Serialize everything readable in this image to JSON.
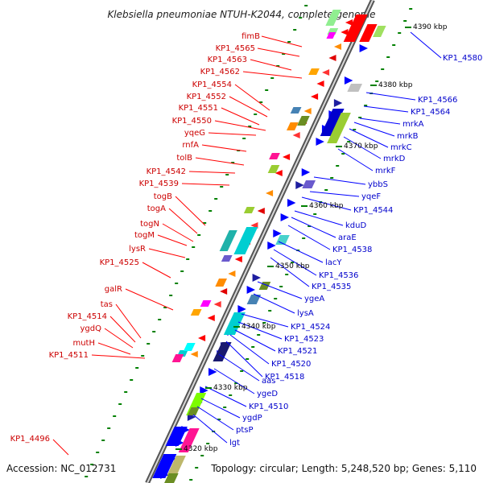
{
  "title": "Klebsiella pneumoniae NTUH-K2044, complete genome",
  "accession": "Accession: NC_012731",
  "topology": "Topology: circular; Length: 5,248,520 bp; Genes: 5,110",
  "colors": {
    "forward_label": "#cc0000",
    "reverse_label": "#0000cc",
    "forward_arrow": "#ff0000",
    "reverse_arrow": "#0000ff",
    "backbone": "#808080",
    "tick": "#008000"
  },
  "kbp_markers": [
    "4390 kbp",
    "4380 kbp",
    "4370 kbp",
    "4360 kbp",
    "4350 kbp",
    "4340 kbp",
    "4330 kbp",
    "4320 kbp"
  ],
  "left_labels": [
    "fimB",
    "KP1_4565",
    "KP1_4563",
    "KP1_4562",
    "KP1_4554",
    "KP1_4552",
    "KP1_4551",
    "KP1_4550",
    "yqeG",
    "rnfA",
    "tolB",
    "KP1_4542",
    "KP1_4539",
    "togB",
    "togA",
    "togN",
    "togM",
    "lysR",
    "KP1_4525",
    "galR",
    "tas",
    "KP1_4514",
    "ygdQ",
    "mutH",
    "KP1_4511",
    "KP1_4496"
  ],
  "right_labels": [
    "KP1_4580",
    "KP1_4566",
    "KP1_4564",
    "mrkA",
    "mrkB",
    "mrkC",
    "mrkD",
    "mrkF",
    "ybbS",
    "yqeF",
    "KP1_4544",
    "kduD",
    "araE",
    "KP1_4538",
    "lacY",
    "KP1_4536",
    "KP1_4535",
    "ygeA",
    "lysA",
    "KP1_4524",
    "KP1_4523",
    "KP1_4521",
    "KP1_4520",
    "KP1_4518",
    "aas",
    "ygeD",
    "KP1_4510",
    "ygdP",
    "ptsP",
    "lgt"
  ]
}
